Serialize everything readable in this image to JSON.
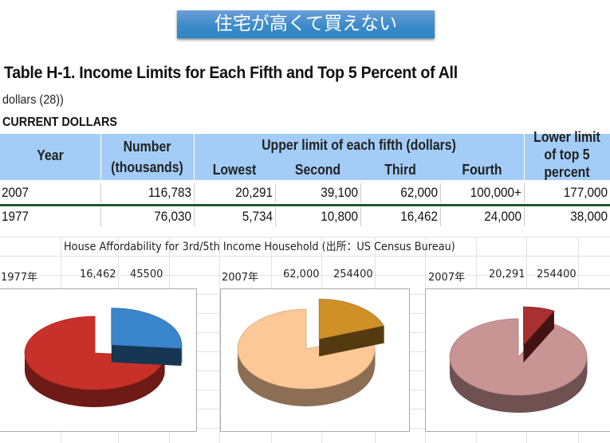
{
  "banner": "住宅が高くて買えない",
  "title": "Table H-1. Income Limits for Each Fifth and Top 5 Percent of All",
  "subtitle": "dollars (28))",
  "section": "CURRENT DOLLARS",
  "table": {
    "headers": {
      "year": "Year",
      "number1": "Number",
      "number2": "(thousands)",
      "upper": "Upper limit of each fifth (dollars)",
      "lowest": "Lowest",
      "second": "Second",
      "third": "Third",
      "fourth": "Fourth",
      "top1": "Lower limit",
      "top2": "of top 5",
      "top3": "percent"
    },
    "rows": [
      [
        "2007",
        "116,783",
        "20,291",
        "39,100",
        "62,000",
        "100,000+",
        "177,000"
      ],
      [
        "1977",
        "76,030",
        "5,734",
        "10,800",
        "16,462",
        "24,000",
        "38,000"
      ]
    ]
  },
  "sheet": {
    "caption": "House Affordability for 3rd/5th Income Household (出所：US Census Bureau)",
    "blocks": [
      {
        "year": "1977年",
        "income": "16,462",
        "price": "45500"
      },
      {
        "year": "2007年",
        "income": "62,000",
        "price": "254400"
      },
      {
        "year": "2007年",
        "income": "20,291",
        "price": "254400"
      }
    ]
  },
  "chart_data": [
    {
      "type": "pie",
      "style": "3d-exploded",
      "slices": [
        {
          "value": 16462,
          "color": "#3a86cc"
        },
        {
          "value": 45500,
          "color": "#c8302a"
        }
      ]
    },
    {
      "type": "pie",
      "style": "3d-exploded",
      "slices": [
        {
          "value": 62000,
          "color": "#d09028"
        },
        {
          "value": 254400,
          "color": "#fcc896"
        }
      ]
    },
    {
      "type": "pie",
      "style": "3d-exploded",
      "slices": [
        {
          "value": 20291,
          "color": "#a83030"
        },
        {
          "value": 254400,
          "color": "#c99494"
        }
      ]
    }
  ]
}
